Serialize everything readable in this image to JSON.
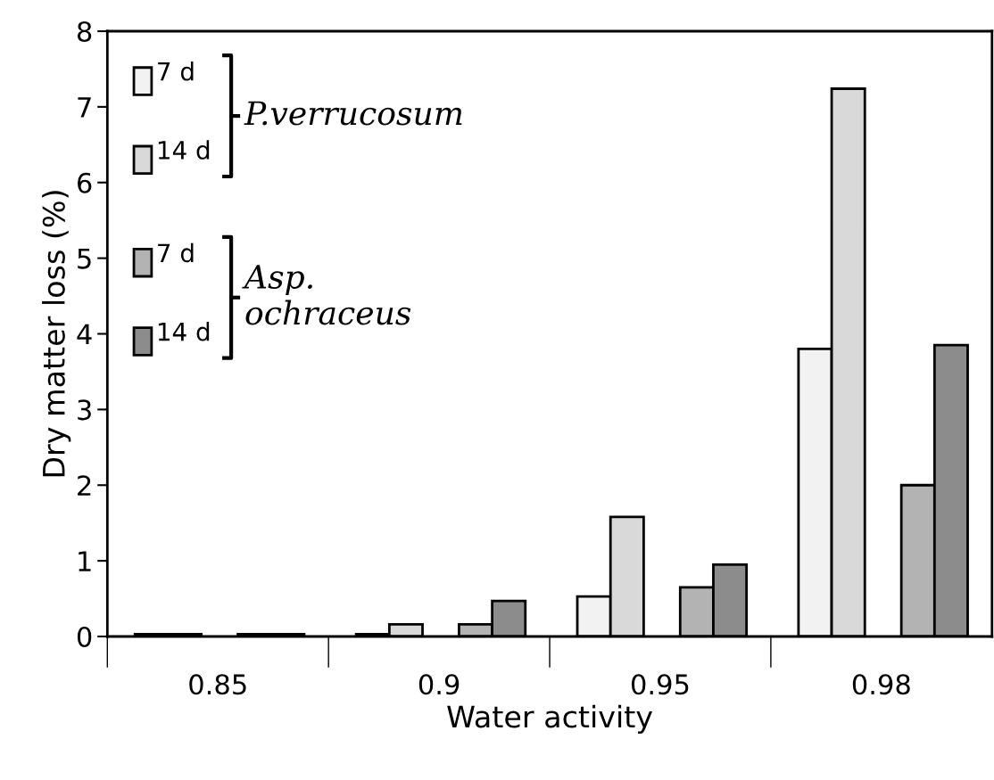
{
  "chart_data": {
    "type": "bar",
    "xlabel": "Water activity",
    "ylabel": "Dry matter loss (%)",
    "categories": [
      "0.85",
      "0.9",
      "0.95",
      "0.98"
    ],
    "series": [
      {
        "name": "7 d",
        "color": "#f2f2f2",
        "values": [
          0.03,
          0.03,
          0.53,
          3.8
        ]
      },
      {
        "name": "14 d",
        "color": "#d9d9d9",
        "values": [
          0.03,
          0.16,
          1.58,
          7.24
        ]
      },
      {
        "name": "7 d",
        "color": "#b3b3b3",
        "values": [
          0.03,
          0.16,
          0.65,
          2.0
        ]
      },
      {
        "name": "14 d",
        "color": "#8c8c8c",
        "values": [
          0.03,
          0.47,
          0.95,
          3.85
        ]
      }
    ],
    "annotations": [
      "P.verrucosum",
      "Asp.\nochraceus"
    ],
    "ylim": [
      0,
      8
    ],
    "yticks": [
      0,
      1,
      2,
      3,
      4,
      5,
      6,
      7,
      8
    ],
    "grid": false,
    "legend": "top left"
  }
}
